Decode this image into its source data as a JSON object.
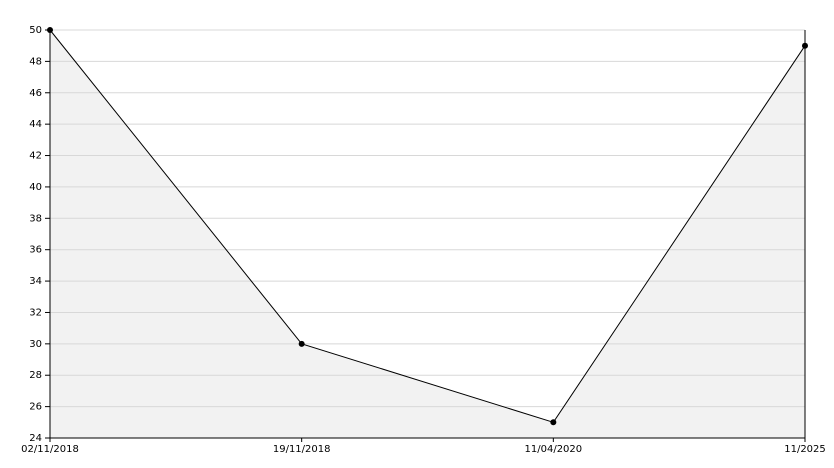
{
  "chart_data": {
    "type": "area",
    "categories": [
      "02/11/2018",
      "19/11/2018",
      "11/04/2020",
      "11/2025"
    ],
    "values": [
      50,
      30,
      25,
      49
    ],
    "color": "#000000",
    "fill": "#f2f2f2",
    "ylim": [
      24,
      50
    ],
    "yticks": [
      24,
      26,
      28,
      30,
      32,
      34,
      36,
      38,
      40,
      42,
      44,
      46,
      48,
      50
    ],
    "grid": true
  }
}
